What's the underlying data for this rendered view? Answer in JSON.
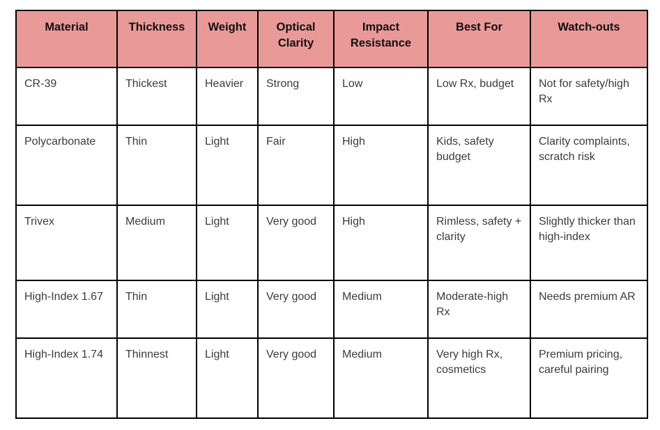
{
  "colors": {
    "header_bg": "#EA9999",
    "border": "#000000",
    "header_text": "#111111",
    "body_text": "#3b3b3b"
  },
  "table": {
    "headers": [
      "Material",
      "Thickness",
      "Weight",
      "Optical Clarity",
      "Impact Resistance",
      "Best For",
      "Watch-outs"
    ],
    "rows": [
      [
        "CR-39",
        "Thickest",
        "Heavier",
        "Strong",
        "Low",
        "Low Rx, budget",
        "Not for safety/high Rx"
      ],
      [
        "Polycarbonate",
        "Thin",
        "Light",
        "Fair",
        "High",
        "Kids, safety budget",
        "Clarity complaints, scratch risk"
      ],
      [
        "Trivex",
        "Medium",
        "Light",
        "Very good",
        "High",
        "Rimless, safety + clarity",
        "Slightly thicker than high-index"
      ],
      [
        "High-Index 1.67",
        "Thin",
        "Light",
        "Very good",
        "Medium",
        "Moderate-high Rx",
        "Needs premium AR"
      ],
      [
        "High-Index 1.74",
        "Thinnest",
        "Light",
        "Very good",
        "Medium",
        "Very high Rx, cosmetics",
        "Premium pricing, careful pairing"
      ]
    ]
  }
}
